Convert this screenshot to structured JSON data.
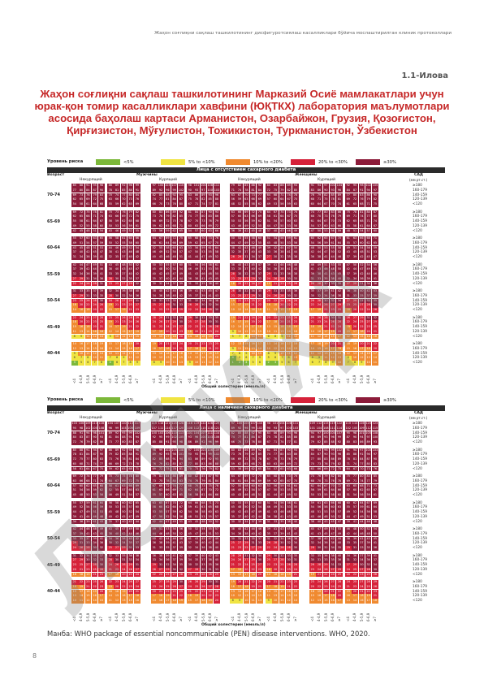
{
  "header": {
    "running_title": "Жаҳон соғлиқни сақлаш ташкилотининг дисфигуротсиялаш касалликлари бўйича мослаштирилган клиник протоколлари"
  },
  "annex_label": "1.1-Илова",
  "title": "Жаҳон соғлиқни сақлаш ташкилотининг Марказий Осиё мамлакатлари учун юрак-қон томир касалликлари хавфини (ЮҚТКХ) лаборатория маълумотлари асосида баҳолаш картаси Арманистон, Озарбайжон, Грузия, Қозоғистон, Қирғизистон, Мўғулистон, Тожикистон, Туркманистон, Ўзбекистон",
  "legend": {
    "label": "Уровень риска",
    "items": [
      {
        "text": "<5%",
        "color": "#7cb83a"
      },
      {
        "text": "5% to <10%",
        "color": "#f0e442"
      },
      {
        "text": "10% to <20%",
        "color": "#f08a30"
      },
      {
        "text": "20% to <30%",
        "color": "#d6223a"
      },
      {
        "text": "≥30%",
        "color": "#8c1c3a"
      }
    ]
  },
  "charts": [
    {
      "condition": "Лица с отсутствием сахарного диабета"
    },
    {
      "condition": "Лица с наличием сахарного диабета"
    }
  ],
  "labels": {
    "age": "Возраст",
    "men": "Мужчины",
    "women": "Женщины",
    "nonsmoker": "Некурящий",
    "smoker": "Курящий",
    "sbp": "САД",
    "sbp_unit": "(мм рт.ст.)",
    "chol_axis": "Общий холестерин (ммоль/л)"
  },
  "ages": [
    "70-74",
    "65-69",
    "60-64",
    "55-59",
    "50-54",
    "45-49",
    "40-44"
  ],
  "sbp_levels": [
    "≥180",
    "160-179",
    "140-159",
    "120-139",
    "<120"
  ],
  "chol_levels": [
    "<4",
    "4-4,9",
    "5-5,9",
    "6-6,9",
    "≥7"
  ],
  "source": "Манба: WHO package of essential noncommunicable (PEN) disease interventions. WHO, 2020.",
  "page_number": "8"
}
